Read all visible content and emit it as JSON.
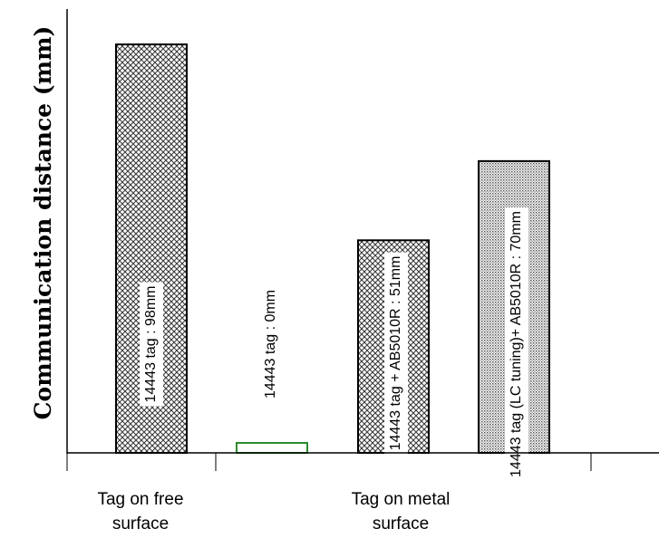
{
  "chart_data": {
    "type": "bar",
    "ylabel": "Communication distance (mm)",
    "xlabel": "",
    "ylim": [
      0,
      100
    ],
    "grid": false,
    "bars": [
      {
        "label": "14443 tag : 98mm",
        "value": 98,
        "pattern": "crosshatch",
        "group": 0
      },
      {
        "label": "14443 tag : 0mm",
        "value": 0,
        "pattern": "none",
        "color": "#2e8b2e",
        "group": 1
      },
      {
        "label": "14443 tag + AB5010R : 51mm",
        "value": 51,
        "pattern": "crosshatch",
        "group": 1
      },
      {
        "label": "14443 tag (LC tuning)+ AB5010R : 70mm",
        "value": 70,
        "pattern": "dots",
        "group": 1
      }
    ],
    "groups": [
      {
        "label_lines": [
          "Tag on free",
          "surface"
        ]
      },
      {
        "label_lines": [
          "Tag on metal",
          "surface"
        ]
      }
    ]
  }
}
